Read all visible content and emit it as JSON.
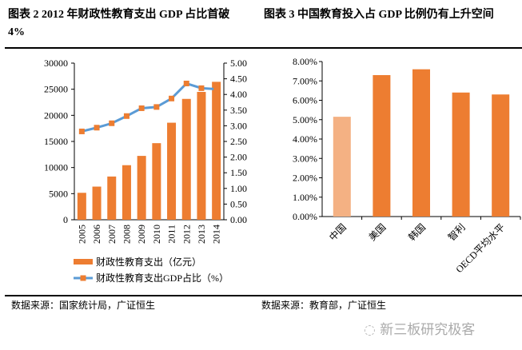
{
  "left": {
    "title": "图表 2 2012 年财政性教育支出 GDP 占比首破 4%",
    "source": "数据来源：国家统计局，广证恒生"
  },
  "right": {
    "title": "图表 3  中国教育投入占 GDP 比例仍有上升空间",
    "source": "数据来源：教育部，广证恒生"
  },
  "watermark": "新三板研究极客",
  "colors": {
    "bar": "#ED7D31",
    "bar_highlight": "#F4B183",
    "line": "#5B9BD5"
  },
  "chart_data": [
    {
      "type": "bar+line",
      "categories": [
        "2005",
        "2006",
        "2007",
        "2008",
        "2009",
        "2010",
        "2011",
        "2012",
        "2013",
        "2014"
      ],
      "series": [
        {
          "name": "财政性教育支出（亿元）",
          "type": "bar",
          "axis": "left",
          "values": [
            5161,
            6348,
            8280,
            10450,
            12231,
            14670,
            18587,
            23148,
            24488,
            26420
          ]
        },
        {
          "name": "财政性教育支出GDP占比（%）",
          "type": "line",
          "axis": "right",
          "values": [
            2.82,
            2.94,
            3.08,
            3.31,
            3.56,
            3.6,
            3.87,
            4.35,
            4.2,
            4.17
          ]
        }
      ],
      "ylim_left": [
        0,
        30000
      ],
      "yticks_left": [
        "0",
        "5000",
        "10000",
        "15000",
        "20000",
        "25000",
        "30000"
      ],
      "ylim_right": [
        0,
        5
      ],
      "yticks_right": [
        "0.00",
        "0.50",
        "1.00",
        "1.50",
        "2.00",
        "2.50",
        "3.00",
        "3.50",
        "4.00",
        "4.50",
        "5.00"
      ],
      "legend": "bottom",
      "grid": false
    },
    {
      "type": "bar",
      "categories": [
        "中国",
        "美国",
        "韩国",
        "智利",
        "OECD平均水平"
      ],
      "values": [
        5.15,
        7.3,
        7.6,
        6.4,
        6.3
      ],
      "highlight": "中国",
      "ylim": [
        0,
        8
      ],
      "yticks": [
        "0.00%",
        "1.00%",
        "2.00%",
        "3.00%",
        "4.00%",
        "5.00%",
        "6.00%",
        "7.00%",
        "8.00%"
      ],
      "grid": false
    }
  ]
}
